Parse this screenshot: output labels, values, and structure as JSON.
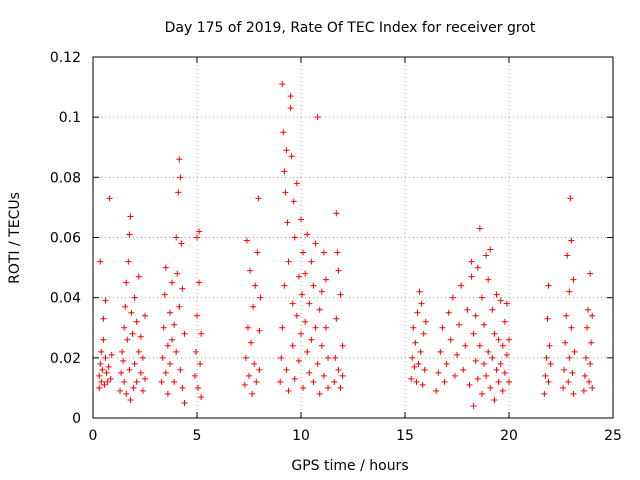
{
  "chart_data": {
    "type": "scatter",
    "title": "Day 175 of 2019, Rate Of TEC Index for receiver grot",
    "xlabel": "GPS time / hours",
    "ylabel": "ROTI / TECUs",
    "xlim": [
      0,
      25
    ],
    "ylim": [
      0,
      0.12
    ],
    "x_ticks": [
      0,
      5,
      10,
      15,
      20,
      25
    ],
    "y_ticks": [
      0,
      0.02,
      0.04,
      0.06,
      0.08,
      0.1,
      0.12
    ],
    "x_tick_labels": [
      "0",
      "5",
      "10",
      "15",
      "20",
      "25"
    ],
    "y_tick_labels": [
      "0",
      "0.02",
      "0.04",
      "0.06",
      "0.08",
      "0.1",
      "0.12"
    ],
    "grid": true,
    "marker": "plus",
    "series": [
      {
        "color": "#ff0000",
        "points": [
          [
            0.3,
            0.01
          ],
          [
            0.3,
            0.014
          ],
          [
            0.35,
            0.018
          ],
          [
            0.4,
            0.012
          ],
          [
            0.4,
            0.022
          ],
          [
            0.45,
            0.016
          ],
          [
            0.5,
            0.026
          ],
          [
            0.5,
            0.033
          ],
          [
            0.35,
            0.052
          ],
          [
            0.55,
            0.011
          ],
          [
            0.6,
            0.02
          ],
          [
            0.6,
            0.039
          ],
          [
            0.65,
            0.015
          ],
          [
            0.7,
            0.012
          ],
          [
            0.75,
            0.017
          ],
          [
            0.8,
            0.073
          ],
          [
            0.85,
            0.013
          ],
          [
            0.9,
            0.021
          ],
          [
            1.3,
            0.009
          ],
          [
            1.35,
            0.015
          ],
          [
            1.4,
            0.022
          ],
          [
            1.45,
            0.019
          ],
          [
            1.5,
            0.03
          ],
          [
            1.5,
            0.012
          ],
          [
            1.55,
            0.037
          ],
          [
            1.6,
            0.045
          ],
          [
            1.6,
            0.008
          ],
          [
            1.65,
            0.026
          ],
          [
            1.7,
            0.052
          ],
          [
            1.75,
            0.061
          ],
          [
            1.75,
            0.016
          ],
          [
            1.8,
            0.067
          ],
          [
            1.8,
            0.006
          ],
          [
            1.85,
            0.035
          ],
          [
            1.9,
            0.028
          ],
          [
            1.95,
            0.01
          ],
          [
            2.0,
            0.04
          ],
          [
            2.0,
            0.018
          ],
          [
            2.1,
            0.032
          ],
          [
            2.1,
            0.012
          ],
          [
            2.2,
            0.047
          ],
          [
            2.2,
            0.022
          ],
          [
            2.3,
            0.015
          ],
          [
            2.3,
            0.027
          ],
          [
            2.4,
            0.009
          ],
          [
            2.4,
            0.02
          ],
          [
            2.5,
            0.013
          ],
          [
            2.5,
            0.034
          ],
          [
            3.3,
            0.012
          ],
          [
            3.35,
            0.02
          ],
          [
            3.4,
            0.03
          ],
          [
            3.45,
            0.041
          ],
          [
            3.5,
            0.05
          ],
          [
            3.5,
            0.015
          ],
          [
            3.6,
            0.024
          ],
          [
            3.6,
            0.008
          ],
          [
            3.7,
            0.035
          ],
          [
            3.7,
            0.018
          ],
          [
            3.8,
            0.045
          ],
          [
            3.8,
            0.026
          ],
          [
            3.9,
            0.031
          ],
          [
            3.9,
            0.012
          ],
          [
            4.0,
            0.06
          ],
          [
            4.0,
            0.022
          ],
          [
            4.05,
            0.048
          ],
          [
            4.1,
            0.075
          ],
          [
            4.15,
            0.086
          ],
          [
            4.15,
            0.037
          ],
          [
            4.2,
            0.08
          ],
          [
            4.2,
            0.016
          ],
          [
            4.25,
            0.058
          ],
          [
            4.3,
            0.043
          ],
          [
            4.3,
            0.01
          ],
          [
            4.4,
            0.028
          ],
          [
            4.4,
            0.005
          ],
          [
            4.9,
            0.014
          ],
          [
            4.95,
            0.022
          ],
          [
            5.0,
            0.034
          ],
          [
            5.0,
            0.06
          ],
          [
            5.05,
            0.01
          ],
          [
            5.1,
            0.045
          ],
          [
            5.1,
            0.062
          ],
          [
            5.15,
            0.018
          ],
          [
            5.2,
            0.028
          ],
          [
            5.2,
            0.007
          ],
          [
            7.3,
            0.011
          ],
          [
            7.35,
            0.02
          ],
          [
            7.4,
            0.059
          ],
          [
            7.45,
            0.03
          ],
          [
            7.5,
            0.014
          ],
          [
            7.55,
            0.049
          ],
          [
            7.6,
            0.025
          ],
          [
            7.65,
            0.008
          ],
          [
            7.7,
            0.037
          ],
          [
            7.75,
            0.018
          ],
          [
            7.8,
            0.044
          ],
          [
            7.85,
            0.012
          ],
          [
            7.9,
            0.055
          ],
          [
            7.95,
            0.073
          ],
          [
            8.0,
            0.029
          ],
          [
            8.0,
            0.016
          ],
          [
            8.05,
            0.04
          ],
          [
            9.0,
            0.012
          ],
          [
            9.05,
            0.02
          ],
          [
            9.1,
            0.03
          ],
          [
            9.1,
            0.111
          ],
          [
            9.15,
            0.095
          ],
          [
            9.2,
            0.082
          ],
          [
            9.2,
            0.044
          ],
          [
            9.25,
            0.075
          ],
          [
            9.3,
            0.089
          ],
          [
            9.3,
            0.016
          ],
          [
            9.35,
            0.065
          ],
          [
            9.4,
            0.052
          ],
          [
            9.4,
            0.009
          ],
          [
            9.5,
            0.103
          ],
          [
            9.5,
            0.107
          ],
          [
            9.55,
            0.087
          ],
          [
            9.6,
            0.038
          ],
          [
            9.6,
            0.024
          ],
          [
            9.65,
            0.072
          ],
          [
            9.7,
            0.06
          ],
          [
            9.7,
            0.013
          ],
          [
            9.8,
            0.078
          ],
          [
            9.8,
            0.034
          ],
          [
            9.9,
            0.047
          ],
          [
            9.9,
            0.019
          ],
          [
            10.0,
            0.066
          ],
          [
            10.0,
            0.028
          ],
          [
            10.05,
            0.041
          ],
          [
            10.1,
            0.055
          ],
          [
            10.1,
            0.01
          ],
          [
            10.2,
            0.032
          ],
          [
            10.2,
            0.048
          ],
          [
            10.3,
            0.022
          ],
          [
            10.3,
            0.061
          ],
          [
            10.4,
            0.015
          ],
          [
            10.4,
            0.038
          ],
          [
            10.5,
            0.026
          ],
          [
            10.5,
            0.052
          ],
          [
            10.6,
            0.012
          ],
          [
            10.6,
            0.044
          ],
          [
            10.7,
            0.03
          ],
          [
            10.7,
            0.058
          ],
          [
            10.8,
            0.1
          ],
          [
            10.8,
            0.018
          ],
          [
            10.9,
            0.036
          ],
          [
            10.9,
            0.008
          ],
          [
            11.0,
            0.042
          ],
          [
            11.0,
            0.024
          ],
          [
            11.1,
            0.055
          ],
          [
            11.1,
            0.014
          ],
          [
            11.2,
            0.03
          ],
          [
            11.2,
            0.046
          ],
          [
            11.3,
            0.02
          ],
          [
            11.3,
            0.01
          ],
          [
            11.6,
            0.012
          ],
          [
            11.65,
            0.02
          ],
          [
            11.7,
            0.068
          ],
          [
            11.7,
            0.033
          ],
          [
            11.75,
            0.055
          ],
          [
            11.8,
            0.049
          ],
          [
            11.8,
            0.016
          ],
          [
            11.9,
            0.041
          ],
          [
            11.9,
            0.01
          ],
          [
            12.0,
            0.024
          ],
          [
            12.0,
            0.014
          ],
          [
            15.3,
            0.013
          ],
          [
            15.35,
            0.02
          ],
          [
            15.4,
            0.03
          ],
          [
            15.45,
            0.017
          ],
          [
            15.5,
            0.025
          ],
          [
            15.55,
            0.012
          ],
          [
            15.6,
            0.035
          ],
          [
            15.65,
            0.018
          ],
          [
            15.7,
            0.042
          ],
          [
            15.75,
            0.022
          ],
          [
            15.8,
            0.038
          ],
          [
            15.85,
            0.011
          ],
          [
            15.9,
            0.028
          ],
          [
            15.95,
            0.016
          ],
          [
            16.0,
            0.032
          ],
          [
            16.5,
            0.009
          ],
          [
            16.6,
            0.015
          ],
          [
            16.7,
            0.022
          ],
          [
            16.8,
            0.03
          ],
          [
            16.9,
            0.012
          ],
          [
            17.0,
            0.018
          ],
          [
            17.1,
            0.035
          ],
          [
            17.2,
            0.026
          ],
          [
            17.3,
            0.04
          ],
          [
            17.4,
            0.014
          ],
          [
            17.5,
            0.021
          ],
          [
            17.6,
            0.031
          ],
          [
            17.7,
            0.044
          ],
          [
            17.8,
            0.016
          ],
          [
            17.9,
            0.024
          ],
          [
            18.0,
            0.036
          ],
          [
            18.1,
            0.011
          ],
          [
            18.2,
            0.052
          ],
          [
            18.2,
            0.047
          ],
          [
            18.3,
            0.028
          ],
          [
            18.3,
            0.004
          ],
          [
            18.4,
            0.019
          ],
          [
            18.4,
            0.034
          ],
          [
            18.5,
            0.05
          ],
          [
            18.5,
            0.013
          ],
          [
            18.6,
            0.063
          ],
          [
            18.6,
            0.024
          ],
          [
            18.7,
            0.04
          ],
          [
            18.7,
            0.008
          ],
          [
            18.8,
            0.018
          ],
          [
            18.8,
            0.031
          ],
          [
            18.9,
            0.054
          ],
          [
            18.9,
            0.014
          ],
          [
            19.0,
            0.046
          ],
          [
            19.0,
            0.022
          ],
          [
            19.1,
            0.056
          ],
          [
            19.1,
            0.01
          ],
          [
            19.2,
            0.036
          ],
          [
            19.2,
            0.02
          ],
          [
            19.3,
            0.028
          ],
          [
            19.3,
            0.006
          ],
          [
            19.4,
            0.016
          ],
          [
            19.4,
            0.041
          ],
          [
            19.5,
            0.026
          ],
          [
            19.5,
            0.012
          ],
          [
            19.6,
            0.039
          ],
          [
            19.6,
            0.018
          ],
          [
            19.7,
            0.024
          ],
          [
            19.7,
            0.009
          ],
          [
            19.8,
            0.032
          ],
          [
            19.8,
            0.015
          ],
          [
            19.9,
            0.021
          ],
          [
            19.9,
            0.038
          ],
          [
            20.0,
            0.012
          ],
          [
            20.0,
            0.026
          ],
          [
            21.7,
            0.008
          ],
          [
            21.75,
            0.014
          ],
          [
            21.8,
            0.02
          ],
          [
            21.85,
            0.033
          ],
          [
            21.9,
            0.044
          ],
          [
            21.9,
            0.012
          ],
          [
            21.95,
            0.024
          ],
          [
            22.0,
            0.018
          ],
          [
            22.6,
            0.01
          ],
          [
            22.65,
            0.016
          ],
          [
            22.7,
            0.025
          ],
          [
            22.75,
            0.034
          ],
          [
            22.8,
            0.054
          ],
          [
            22.85,
            0.012
          ],
          [
            22.9,
            0.042
          ],
          [
            22.9,
            0.02
          ],
          [
            22.95,
            0.073
          ],
          [
            23.0,
            0.059
          ],
          [
            23.0,
            0.03
          ],
          [
            23.05,
            0.015
          ],
          [
            23.1,
            0.046
          ],
          [
            23.1,
            0.008
          ],
          [
            23.15,
            0.022
          ],
          [
            23.6,
            0.009
          ],
          [
            23.65,
            0.014
          ],
          [
            23.7,
            0.02
          ],
          [
            23.75,
            0.03
          ],
          [
            23.8,
            0.036
          ],
          [
            23.85,
            0.012
          ],
          [
            23.9,
            0.048
          ],
          [
            23.9,
            0.018
          ],
          [
            23.95,
            0.025
          ],
          [
            24.0,
            0.034
          ],
          [
            24.0,
            0.01
          ]
        ]
      }
    ]
  }
}
